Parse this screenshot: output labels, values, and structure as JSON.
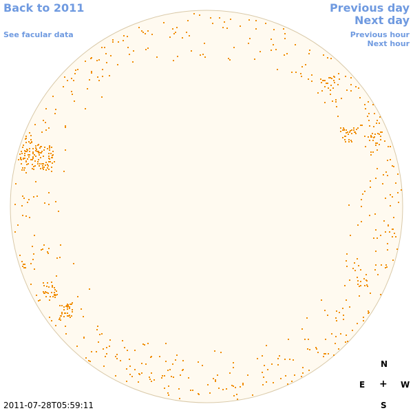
{
  "nav": {
    "back_label": "Back to 2011",
    "facular_label": "See facular data",
    "prev_day_label": "Previous day",
    "next_day_label": "Next day",
    "prev_hour_label": "Previous hour",
    "next_hour_label": "Next hour"
  },
  "timestamp": "2011-07-28T05:59:11",
  "compass": {
    "n": "N",
    "s": "S",
    "e": "E",
    "w": "W",
    "center": "+"
  },
  "colors": {
    "disk_fill": "#fffaf0",
    "disk_border": "#d9c9a8",
    "feature": "#f08c00",
    "link": "#6f9ae0"
  }
}
